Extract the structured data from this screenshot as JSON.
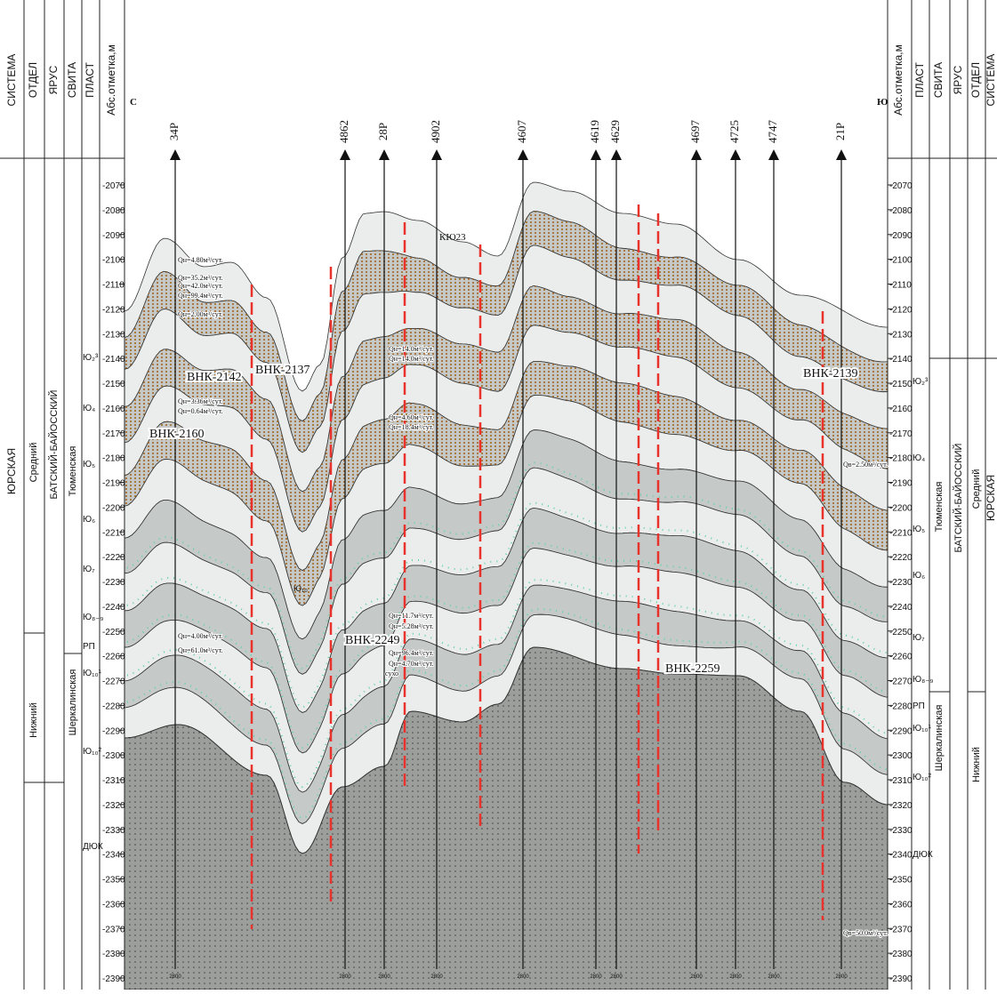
{
  "header": {
    "left_columns": [
      "СИСТЕМА",
      "ОТДЕЛ",
      "ЯРУС",
      "СВИТА",
      "ПЛАСТ",
      "Абс.отметка,м"
    ],
    "right_columns": [
      "Абс.отметка,м",
      "ПЛАСТ",
      "СВИТА",
      "ЯРУС",
      "ОТДЕЛ",
      "СИСТЕМА"
    ],
    "left_direction": "С",
    "right_direction": "Ю"
  },
  "depth_ticks": [
    -2070,
    -2080,
    -2090,
    -2100,
    -2110,
    -2120,
    -2130,
    -2140,
    -2150,
    -2160,
    -2170,
    -2180,
    -2190,
    -2200,
    -2210,
    -2220,
    -2230,
    -2240,
    -2250,
    -2260,
    -2270,
    -2280,
    -2290,
    -2300,
    -2310,
    -2320,
    -2330,
    -2340,
    -2350,
    -2360,
    -2370,
    -2380,
    -2390
  ],
  "stratigraphy": {
    "system": "ЮРСКАЯ",
    "series": [
      "Средний",
      "Нижний"
    ],
    "stage": "БАТСКИЙ-БАЙОССКИЙ",
    "suites": [
      "Тюменская",
      "Шеркалинская"
    ],
    "left_layers": [
      "Ю₂³",
      "Ю₄",
      "Ю₅",
      "Ю₆",
      "Ю₇",
      "Ю₈₋₉",
      "РП",
      "Ю₁₀¹",
      "Ю₁₀²",
      "ДЮК"
    ],
    "right_layers": [
      "Ю₂³",
      "Ю₄",
      "Ю₅",
      "Ю₆",
      "Ю₇",
      "Ю₈₋₉",
      "РП",
      "Ю₁₀¹",
      "Ю₁₀²",
      "ДЮК"
    ]
  },
  "wells": [
    {
      "name": "34P",
      "td": "2800"
    },
    {
      "name": "4862",
      "td": "2800"
    },
    {
      "name": "28P",
      "td": "2800"
    },
    {
      "name": "4902",
      "td": "2800"
    },
    {
      "name": "4607",
      "td": "2800"
    },
    {
      "name": "4619",
      "td": "2800"
    },
    {
      "name": "4629",
      "td": "2800"
    },
    {
      "name": "4697",
      "td": "2800"
    },
    {
      "name": "4725",
      "td": "2800"
    },
    {
      "name": "4747",
      "td": "2800"
    },
    {
      "name": "21P",
      "td": "2800"
    }
  ],
  "contacts": [
    "ВНК-2142",
    "ВНК-2137",
    "ВНК-2160",
    "ВНК-2249",
    "ВНК-2259",
    "ВНК-2139"
  ],
  "flow_notes": [
    "Qн=4.80м³/сут.",
    "Qн=35.2м³/сут.",
    "Qн=42.0м³/сут.",
    "Qн=99.4м³/сут.",
    "Qн=2.00м³/сут.",
    "Qн=3.36м³/сут.",
    "Qн=0.64м³/сут.",
    "Qн=4.00м³/сут.",
    "Qн=61.0м³/сут.",
    "Qн=14.0м³/сут.",
    "Qн=14.0м³/сут.",
    "Qн=4.60м³/сут.",
    "Qн=18.4м³/сут.",
    "Qн=11.7м³/сут.",
    "Qн=5.28м³/сут.",
    "Qн=96.4м³/сут.",
    "Qн=4.70м³/сут.",
    "сухо",
    "Qв=2.50м³/сут.",
    "Qв=50.0м³/сут."
  ],
  "other_labels": [
    "КЮ23",
    "Ю₁₀"
  ]
}
